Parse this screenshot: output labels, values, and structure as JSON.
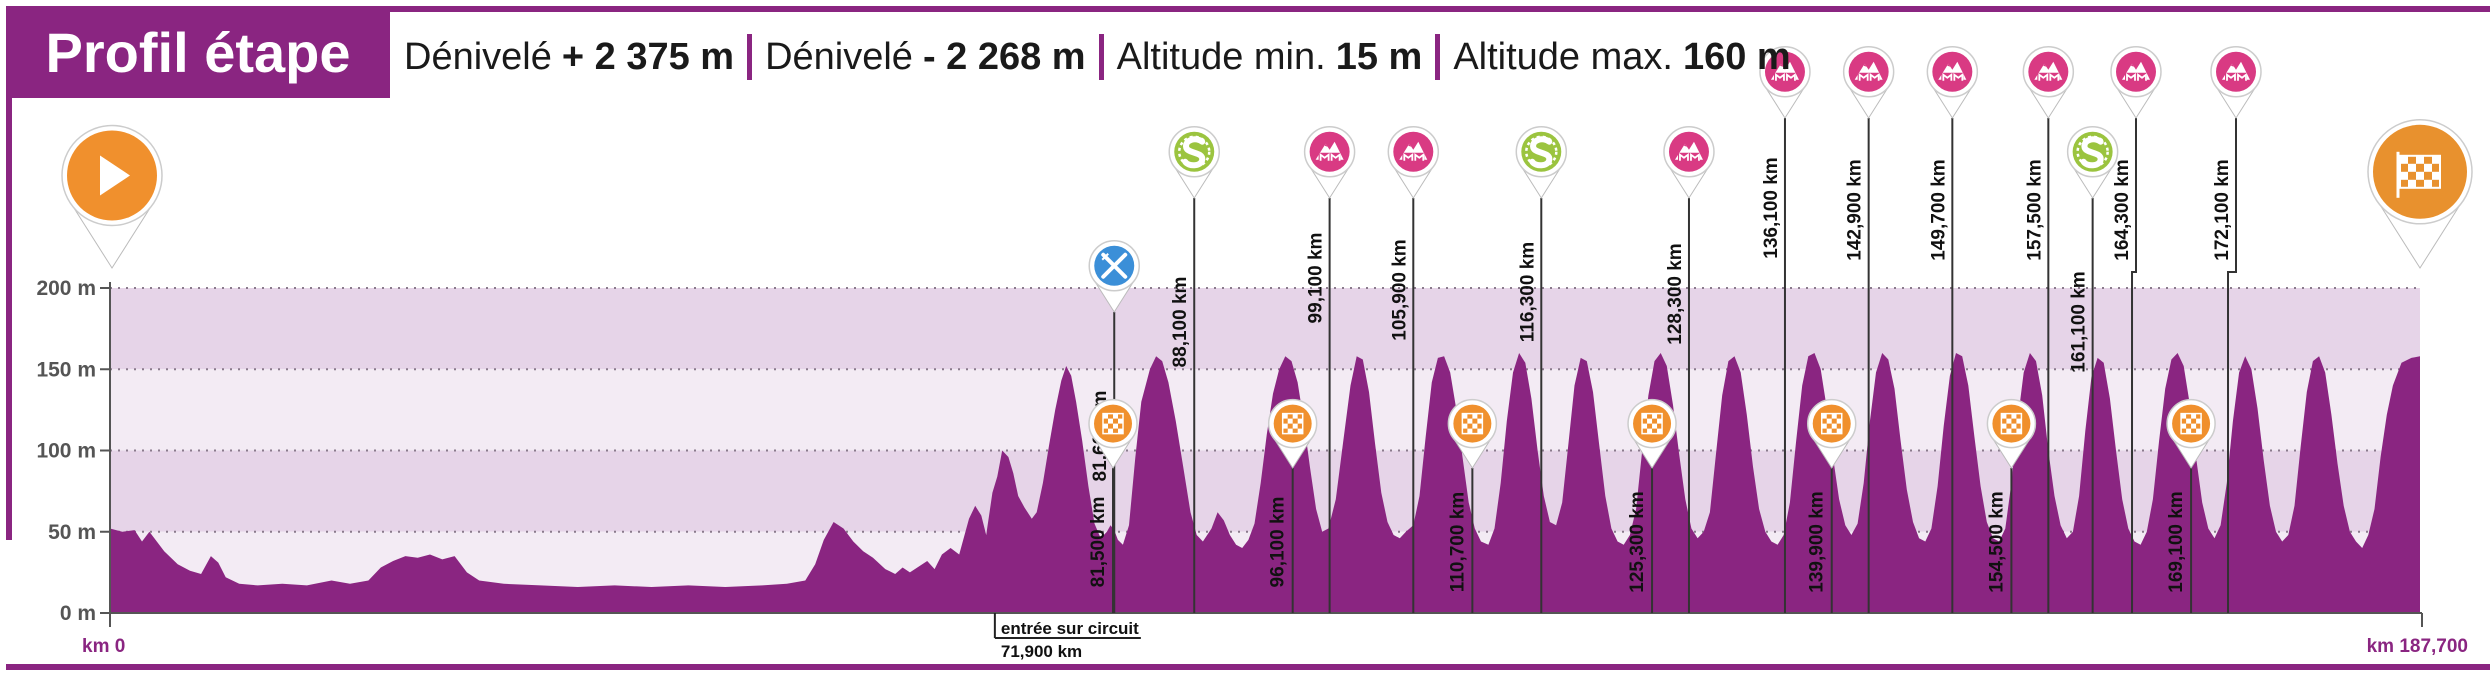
{
  "header": {
    "title": "Profil étape",
    "stats": [
      {
        "label": "Dénivelé",
        "value": "+ 2 375 m"
      },
      {
        "label": "Dénivelé",
        "value": "- 2 268 m"
      },
      {
        "label": "Altitude min.",
        "value": "15 m"
      },
      {
        "label": "Altitude max.",
        "value": "160 m"
      }
    ]
  },
  "colors": {
    "brand": "#8a2581",
    "profile_fill": "#8a2581",
    "band_dark": "#e6d4e8",
    "band_light": "#f3ebf4",
    "start_marker": "#f0902d",
    "finish_marker": "#e8912e",
    "climb_marker": "#d93a83",
    "sprint_marker": "#9bc43f",
    "feed_marker": "#3b8fd8",
    "line_marker": "#f0902d"
  },
  "chart_data": {
    "type": "area",
    "xlim": [
      0,
      187.7
    ],
    "ylim": [
      0,
      200
    ],
    "grid": true,
    "yticks": [
      0,
      50,
      100,
      150,
      200
    ],
    "ytick_labels": [
      "0 m",
      "50 m",
      "100 m",
      "150 m",
      "200 m"
    ],
    "xtick_labels": [
      {
        "x": 0,
        "label": "km 0"
      },
      {
        "x": 187.7,
        "label": "km 187,700"
      }
    ],
    "profile": [
      [
        0,
        52
      ],
      [
        1,
        50
      ],
      [
        2,
        51
      ],
      [
        2.6,
        44
      ],
      [
        3.2,
        50
      ],
      [
        4.4,
        38
      ],
      [
        5.5,
        30
      ],
      [
        6.5,
        26
      ],
      [
        7.4,
        24
      ],
      [
        8.2,
        35
      ],
      [
        8.8,
        31
      ],
      [
        9.4,
        22
      ],
      [
        10.5,
        18
      ],
      [
        12,
        17
      ],
      [
        14,
        18
      ],
      [
        16,
        17
      ],
      [
        18,
        20
      ],
      [
        19.5,
        18
      ],
      [
        21,
        20
      ],
      [
        22,
        28
      ],
      [
        23,
        32
      ],
      [
        24,
        35
      ],
      [
        25,
        34
      ],
      [
        26,
        36
      ],
      [
        27,
        33
      ],
      [
        28,
        35
      ],
      [
        29,
        25
      ],
      [
        30,
        20
      ],
      [
        32,
        18
      ],
      [
        35,
        17
      ],
      [
        38,
        16
      ],
      [
        41,
        17
      ],
      [
        44,
        16
      ],
      [
        47,
        17
      ],
      [
        50,
        16
      ],
      [
        53,
        17
      ],
      [
        55,
        18
      ],
      [
        56.5,
        20
      ],
      [
        57.3,
        30
      ],
      [
        58,
        45
      ],
      [
        58.8,
        56
      ],
      [
        59.6,
        52
      ],
      [
        60.4,
        44
      ],
      [
        61.2,
        38
      ],
      [
        62,
        34
      ],
      [
        63,
        27
      ],
      [
        63.8,
        24
      ],
      [
        64.4,
        28
      ],
      [
        65,
        25
      ],
      [
        65.8,
        29
      ],
      [
        66.4,
        32
      ],
      [
        67,
        27
      ],
      [
        67.6,
        36
      ],
      [
        68.3,
        40
      ],
      [
        69,
        36
      ],
      [
        69.8,
        58
      ],
      [
        70.3,
        66
      ],
      [
        70.8,
        60
      ],
      [
        71.2,
        48
      ],
      [
        71.7,
        74
      ],
      [
        72.1,
        84
      ],
      [
        72.5,
        100
      ],
      [
        73,
        96
      ],
      [
        73.4,
        86
      ],
      [
        73.8,
        72
      ],
      [
        74.3,
        65
      ],
      [
        74.9,
        58
      ],
      [
        75.3,
        62
      ],
      [
        75.8,
        80
      ],
      [
        76.3,
        103
      ],
      [
        76.8,
        125
      ],
      [
        77.3,
        143
      ],
      [
        77.7,
        152
      ],
      [
        78.1,
        146
      ],
      [
        78.5,
        130
      ],
      [
        79,
        106
      ],
      [
        79.5,
        78
      ],
      [
        80,
        55
      ],
      [
        80.5,
        46
      ],
      [
        81,
        50
      ],
      [
        81.3,
        54
      ],
      [
        81.6,
        51
      ],
      [
        81.9,
        45
      ],
      [
        82.3,
        42
      ],
      [
        82.8,
        54
      ],
      [
        83.3,
        95
      ],
      [
        83.8,
        130
      ],
      [
        84.5,
        150
      ],
      [
        85,
        158
      ],
      [
        85.5,
        155
      ],
      [
        86,
        142
      ],
      [
        86.6,
        118
      ],
      [
        87.2,
        90
      ],
      [
        87.8,
        62
      ],
      [
        88.3,
        48
      ],
      [
        88.8,
        44
      ],
      [
        89.5,
        52
      ],
      [
        90,
        62
      ],
      [
        90.5,
        57
      ],
      [
        91,
        48
      ],
      [
        91.5,
        42
      ],
      [
        92,
        40
      ],
      [
        92.5,
        45
      ],
      [
        93,
        55
      ],
      [
        93.5,
        80
      ],
      [
        94,
        110
      ],
      [
        94.5,
        135
      ],
      [
        95,
        150
      ],
      [
        95.5,
        158
      ],
      [
        96,
        155
      ],
      [
        96.5,
        142
      ],
      [
        97,
        118
      ],
      [
        97.5,
        90
      ],
      [
        98,
        64
      ],
      [
        98.5,
        50
      ],
      [
        99,
        52
      ],
      [
        99.6,
        70
      ],
      [
        100.2,
        105
      ],
      [
        100.8,
        140
      ],
      [
        101.3,
        158
      ],
      [
        101.8,
        156
      ],
      [
        102.3,
        136
      ],
      [
        102.8,
        104
      ],
      [
        103.3,
        74
      ],
      [
        103.8,
        56
      ],
      [
        104.3,
        48
      ],
      [
        104.8,
        46
      ],
      [
        105.3,
        50
      ],
      [
        105.9,
        54
      ],
      [
        106.4,
        72
      ],
      [
        106.9,
        108
      ],
      [
        107.4,
        142
      ],
      [
        107.9,
        157
      ],
      [
        108.4,
        158
      ],
      [
        108.9,
        148
      ],
      [
        109.4,
        125
      ],
      [
        109.9,
        96
      ],
      [
        110.4,
        68
      ],
      [
        110.9,
        52
      ],
      [
        111.4,
        44
      ],
      [
        112,
        42
      ],
      [
        112.5,
        52
      ],
      [
        113,
        80
      ],
      [
        113.5,
        118
      ],
      [
        114,
        148
      ],
      [
        114.5,
        160
      ],
      [
        115,
        154
      ],
      [
        115.5,
        132
      ],
      [
        116,
        100
      ],
      [
        116.5,
        72
      ],
      [
        117,
        56
      ],
      [
        117.5,
        54
      ],
      [
        118,
        68
      ],
      [
        118.5,
        104
      ],
      [
        119,
        140
      ],
      [
        119.5,
        157
      ],
      [
        120,
        155
      ],
      [
        120.5,
        136
      ],
      [
        121,
        104
      ],
      [
        121.5,
        72
      ],
      [
        122,
        52
      ],
      [
        122.5,
        44
      ],
      [
        123,
        42
      ],
      [
        123.5,
        48
      ],
      [
        124,
        64
      ],
      [
        124.5,
        100
      ],
      [
        125,
        134
      ],
      [
        125.5,
        155
      ],
      [
        126,
        160
      ],
      [
        126.5,
        152
      ],
      [
        127,
        128
      ],
      [
        127.5,
        98
      ],
      [
        128,
        70
      ],
      [
        128.5,
        52
      ],
      [
        129,
        46
      ],
      [
        129.5,
        50
      ],
      [
        130,
        62
      ],
      [
        130.5,
        98
      ],
      [
        131,
        134
      ],
      [
        131.5,
        155
      ],
      [
        132,
        158
      ],
      [
        132.5,
        148
      ],
      [
        133,
        122
      ],
      [
        133.5,
        90
      ],
      [
        134,
        64
      ],
      [
        134.5,
        50
      ],
      [
        135,
        44
      ],
      [
        135.5,
        42
      ],
      [
        136,
        48
      ],
      [
        136.5,
        68
      ],
      [
        137,
        105
      ],
      [
        137.5,
        140
      ],
      [
        138,
        158
      ],
      [
        138.5,
        160
      ],
      [
        139,
        150
      ],
      [
        139.5,
        126
      ],
      [
        140,
        96
      ],
      [
        140.5,
        70
      ],
      [
        141,
        54
      ],
      [
        141.5,
        48
      ],
      [
        142,
        55
      ],
      [
        142.5,
        80
      ],
      [
        143,
        118
      ],
      [
        143.5,
        148
      ],
      [
        144,
        160
      ],
      [
        144.5,
        156
      ],
      [
        145,
        138
      ],
      [
        145.5,
        106
      ],
      [
        146,
        76
      ],
      [
        146.5,
        56
      ],
      [
        147,
        46
      ],
      [
        147.5,
        44
      ],
      [
        148,
        52
      ],
      [
        148.5,
        78
      ],
      [
        149,
        115
      ],
      [
        149.5,
        146
      ],
      [
        150,
        160
      ],
      [
        150.5,
        158
      ],
      [
        151,
        140
      ],
      [
        151.5,
        108
      ],
      [
        152,
        78
      ],
      [
        152.5,
        56
      ],
      [
        153,
        46
      ],
      [
        153.5,
        44
      ],
      [
        154,
        52
      ],
      [
        154.5,
        80
      ],
      [
        155,
        118
      ],
      [
        155.5,
        148
      ],
      [
        156,
        160
      ],
      [
        156.5,
        155
      ],
      [
        157,
        134
      ],
      [
        157.5,
        100
      ],
      [
        158,
        72
      ],
      [
        158.5,
        54
      ],
      [
        159,
        46
      ],
      [
        159.5,
        50
      ],
      [
        160,
        72
      ],
      [
        160.5,
        112
      ],
      [
        161,
        145
      ],
      [
        161.5,
        157
      ],
      [
        162,
        154
      ],
      [
        162.5,
        132
      ],
      [
        163,
        100
      ],
      [
        163.5,
        70
      ],
      [
        164,
        52
      ],
      [
        164.5,
        44
      ],
      [
        165,
        42
      ],
      [
        165.5,
        50
      ],
      [
        166,
        70
      ],
      [
        166.5,
        106
      ],
      [
        167,
        138
      ],
      [
        167.5,
        156
      ],
      [
        168,
        160
      ],
      [
        168.5,
        152
      ],
      [
        169,
        128
      ],
      [
        169.5,
        96
      ],
      [
        170,
        68
      ],
      [
        170.5,
        52
      ],
      [
        171,
        46
      ],
      [
        171.5,
        54
      ],
      [
        172,
        80
      ],
      [
        172.5,
        118
      ],
      [
        173,
        148
      ],
      [
        173.5,
        158
      ],
      [
        174,
        150
      ],
      [
        174.5,
        126
      ],
      [
        175,
        94
      ],
      [
        175.5,
        66
      ],
      [
        176,
        50
      ],
      [
        176.5,
        44
      ],
      [
        177,
        48
      ],
      [
        177.5,
        66
      ],
      [
        178,
        102
      ],
      [
        178.5,
        136
      ],
      [
        179,
        155
      ],
      [
        179.5,
        158
      ],
      [
        180,
        148
      ],
      [
        180.5,
        122
      ],
      [
        181,
        92
      ],
      [
        181.5,
        66
      ],
      [
        182,
        50
      ],
      [
        182.5,
        44
      ],
      [
        183,
        40
      ],
      [
        183.5,
        48
      ],
      [
        184,
        64
      ],
      [
        184.5,
        96
      ],
      [
        185,
        122
      ],
      [
        185.5,
        140
      ],
      [
        186.2,
        154
      ],
      [
        187,
        157
      ],
      [
        187.7,
        158
      ]
    ],
    "start_marker": {
      "x": 0,
      "icon": "start-play-icon"
    },
    "finish_marker": {
      "x": 187.7,
      "icon": "finish-flag-icon"
    },
    "circuit_entry": {
      "x": 71.9,
      "label": "entrée sur circuit",
      "km": "71,900 km"
    },
    "markers_top": [
      {
        "x": 81.6,
        "label": "81,600 km",
        "icon": "feed-zone-icon",
        "kind": "feed"
      },
      {
        "x": 88.1,
        "label": "88,100 km",
        "icon": "sprint-icon",
        "kind": "sprint"
      },
      {
        "x": 99.1,
        "label": "99,100 km",
        "icon": "climb-icon",
        "kind": "climb"
      },
      {
        "x": 105.9,
        "label": "105,900 km",
        "icon": "climb-icon",
        "kind": "climb"
      },
      {
        "x": 116.3,
        "label": "116,300 km",
        "icon": "sprint-icon",
        "kind": "sprint"
      },
      {
        "x": 128.3,
        "label": "128,300 km",
        "icon": "climb-icon",
        "kind": "climb"
      },
      {
        "x": 136.1,
        "label": "136,100 km",
        "icon": "climb-icon",
        "kind": "climb"
      },
      {
        "x": 142.9,
        "label": "142,900 km",
        "icon": "climb-icon",
        "kind": "climb"
      },
      {
        "x": 149.7,
        "label": "149,700 km",
        "icon": "climb-icon",
        "kind": "climb"
      },
      {
        "x": 157.5,
        "label": "157,500 km",
        "icon": "climb-icon",
        "kind": "climb"
      },
      {
        "x": 161.1,
        "label": "161,100 km",
        "icon": "sprint-icon",
        "kind": "sprint"
      },
      {
        "x": 164.3,
        "label": "164,300 km",
        "icon": "climb-icon",
        "kind": "climb"
      },
      {
        "x": 172.1,
        "label": "172,100 km",
        "icon": "climb-icon",
        "kind": "climb"
      }
    ],
    "markers_line": [
      {
        "x": 81.5,
        "label": "81,500 km",
        "icon": "finish-line-icon"
      },
      {
        "x": 96.1,
        "label": "96,100 km",
        "icon": "finish-line-icon"
      },
      {
        "x": 110.7,
        "label": "110,700 km",
        "icon": "finish-line-icon"
      },
      {
        "x": 125.3,
        "label": "125,300 km",
        "icon": "finish-line-icon"
      },
      {
        "x": 139.9,
        "label": "139,900 km",
        "icon": "finish-line-icon"
      },
      {
        "x": 154.5,
        "label": "154,500 km",
        "icon": "finish-line-icon"
      },
      {
        "x": 169.1,
        "label": "169,100 km",
        "icon": "finish-line-icon"
      }
    ]
  }
}
